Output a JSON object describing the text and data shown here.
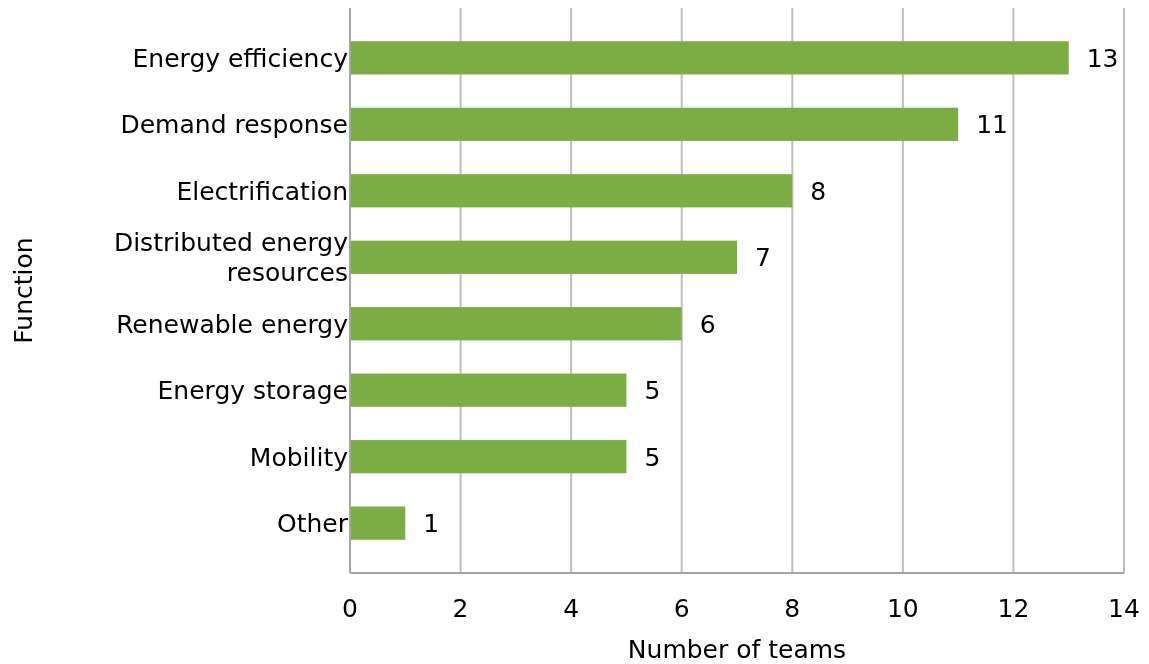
{
  "chart_data": {
    "type": "bar",
    "orientation": "horizontal",
    "xlabel": "Number of teams",
    "ylabel": "Function",
    "categories": [
      "Energy efficiency",
      "Demand response",
      "Electrification",
      "Distributed energy resources",
      "Renewable energy",
      "Energy storage",
      "Mobility",
      "Other"
    ],
    "values": [
      13,
      11,
      8,
      7,
      6,
      5,
      5,
      1
    ],
    "color": "#7cad44",
    "xlim": [
      0,
      14
    ],
    "xticks": [
      0,
      2,
      4,
      6,
      8,
      10,
      12,
      14
    ],
    "grid": "x",
    "data_labels": true
  }
}
